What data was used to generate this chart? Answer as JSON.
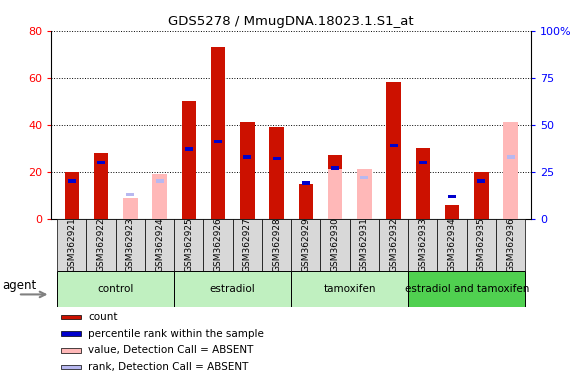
{
  "title": "GDS5278 / MmugDNA.18023.1.S1_at",
  "samples": [
    "GSM362921",
    "GSM362922",
    "GSM362923",
    "GSM362924",
    "GSM362925",
    "GSM362926",
    "GSM362927",
    "GSM362928",
    "GSM362929",
    "GSM362930",
    "GSM362931",
    "GSM362932",
    "GSM362933",
    "GSM362934",
    "GSM362935",
    "GSM362936"
  ],
  "count": [
    20,
    28,
    null,
    null,
    50,
    73,
    41,
    39,
    15,
    27,
    null,
    58,
    30,
    6,
    20,
    null
  ],
  "percentile_rank": [
    20,
    30,
    null,
    null,
    37,
    41,
    33,
    32,
    19,
    27,
    null,
    39,
    30,
    12,
    20,
    33
  ],
  "absent_value": [
    null,
    null,
    9,
    19,
    null,
    null,
    null,
    null,
    null,
    21,
    21,
    null,
    null,
    null,
    null,
    41
  ],
  "absent_rank": [
    null,
    null,
    13,
    20,
    null,
    null,
    null,
    null,
    null,
    null,
    22,
    null,
    null,
    null,
    null,
    33
  ],
  "groups": [
    {
      "label": "control",
      "start": 0,
      "end": 3,
      "color": "#c0f0c0"
    },
    {
      "label": "estradiol",
      "start": 4,
      "end": 7,
      "color": "#c0f0c0"
    },
    {
      "label": "tamoxifen",
      "start": 8,
      "end": 11,
      "color": "#c0f0c0"
    },
    {
      "label": "estradiol and tamoxifen",
      "start": 12,
      "end": 15,
      "color": "#50d050"
    }
  ],
  "bar_width": 0.5,
  "count_color": "#cc1100",
  "rank_color": "#0000cc",
  "absent_value_color": "#ffb8b8",
  "absent_rank_color": "#b8b8f0",
  "ylim_left": [
    0,
    80
  ],
  "ylim_right": [
    0,
    100
  ],
  "yticks_left": [
    0,
    20,
    40,
    60,
    80
  ],
  "yticks_right": [
    0,
    25,
    50,
    75,
    100
  ],
  "ytick_labels_right": [
    "0",
    "25",
    "50",
    "75",
    "100%"
  ],
  "legend_items": [
    {
      "label": "count",
      "color": "#cc1100"
    },
    {
      "label": "percentile rank within the sample",
      "color": "#0000cc"
    },
    {
      "label": "value, Detection Call = ABSENT",
      "color": "#ffb8b8"
    },
    {
      "label": "rank, Detection Call = ABSENT",
      "color": "#b8b8f0"
    }
  ],
  "agent_label": "agent",
  "xtick_bg": "#d8d8d8",
  "plot_bg": "#ffffff"
}
